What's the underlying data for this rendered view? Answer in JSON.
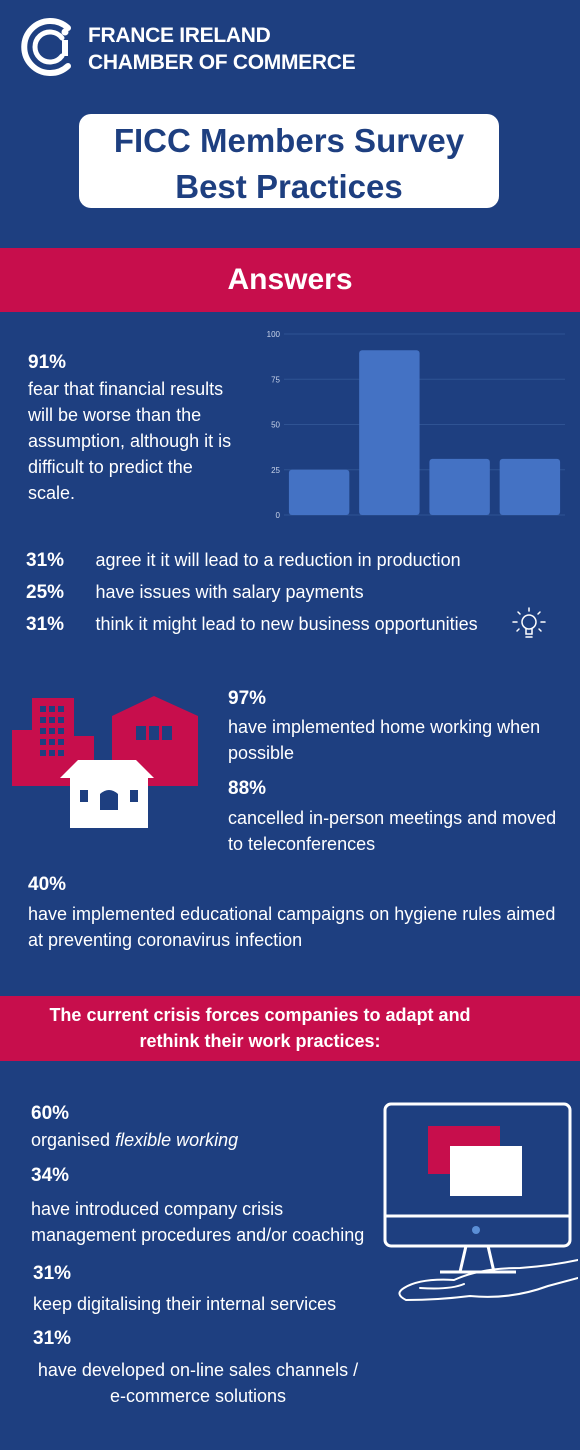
{
  "header": {
    "org_line1": "FRANCE IRELAND",
    "org_line2": "CHAMBER OF COMMERCE",
    "title_line1": "FICC Members Survey",
    "title_line2": "Best Practices"
  },
  "answers_band": {
    "label": "Answers"
  },
  "stat_91": {
    "pct": "91%",
    "text_lines": [
      "fear that financial results",
      "will be worse than the",
      "assumption, although it is",
      "difficult to predict the",
      "scale."
    ]
  },
  "chart_data": {
    "type": "bar",
    "categories": [
      "",
      "",
      "",
      ""
    ],
    "values": [
      25,
      91,
      31,
      31
    ],
    "ylim": [
      0,
      100
    ],
    "yticks": [
      0,
      25,
      50,
      75,
      100
    ],
    "grid": true,
    "bar_color": "#4472c4"
  },
  "list_stats": [
    {
      "pct": "31%",
      "text": "agree it it will lead to a reduction in production"
    },
    {
      "pct": "25%",
      "text": "have issues with salary payments"
    },
    {
      "pct": "31%",
      "text": "think it might lead to new business opportunities"
    }
  ],
  "stat_97": {
    "pct": "97%",
    "line1": "have implemented home working when",
    "line2": "possible"
  },
  "stat_88": {
    "pct": "88%",
    "line1": "cancelled in-person meetings and moved",
    "line2": "to teleconferences"
  },
  "stat_40": {
    "pct": "40%",
    "line1": "have implemented educational campaigns on hygiene rules aimed",
    "line2": "at preventing coronavirus infection"
  },
  "crisis_band": {
    "line1": "The current crisis forces companies to adapt and",
    "line2": "rethink their work practices:"
  },
  "stat_60": {
    "pct": "60%",
    "text_plain": "organised ",
    "text_italic": "flexible working"
  },
  "stat_34": {
    "pct": "34%",
    "line1": "have introduced company crisis",
    "line2": "management procedures and/or coaching"
  },
  "stat_31a": {
    "pct": "31%",
    "line1": "keep digitalising their internal services"
  },
  "stat_31b": {
    "pct": "31%",
    "line1": "have developed on-line sales channels /",
    "line2": "e-commerce solutions"
  },
  "colors": {
    "background": "#1e3f80",
    "accent": "#c70e4c",
    "bar": "#4472c4",
    "white": "#ffffff"
  },
  "icons": [
    "ficc-logo-icon",
    "lightbulb-icon",
    "buildings-icon",
    "computer-hand-icon"
  ]
}
